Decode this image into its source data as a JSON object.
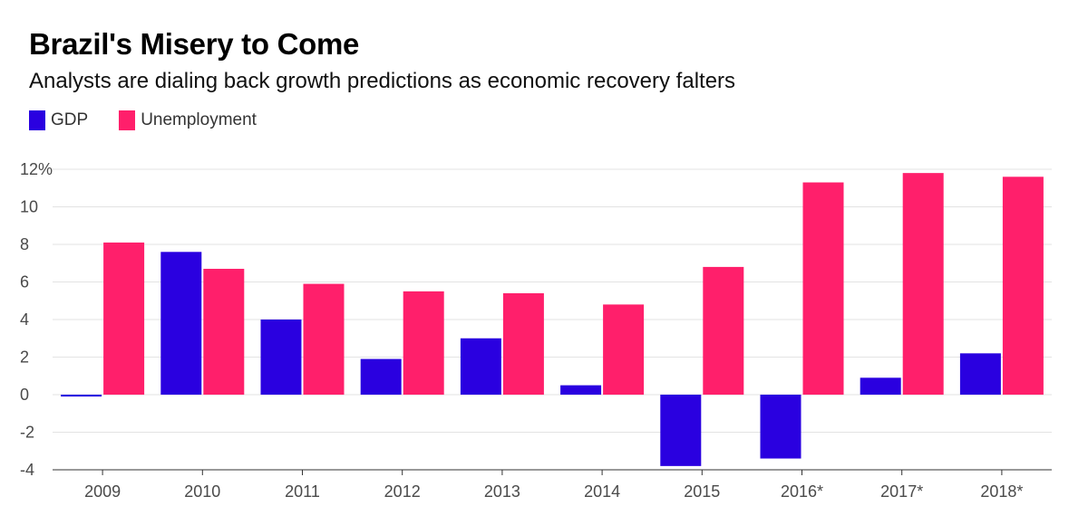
{
  "header": {
    "title": "Brazil's Misery to Come",
    "subtitle": "Analysts are dialing back growth predictions as economic recovery falters"
  },
  "legend": {
    "items": [
      {
        "label": "GDP",
        "color": "#2a00e0"
      },
      {
        "label": "Unemployment",
        "color": "#ff1f6b"
      }
    ]
  },
  "chart_data": {
    "type": "bar",
    "title": "Brazil's Misery to Come",
    "subtitle": "Analysts are dialing back growth predictions as economic recovery falters",
    "xlabel": "",
    "ylabel": "",
    "categories": [
      "2009",
      "2010",
      "2011",
      "2012",
      "2013",
      "2014",
      "2015",
      "2016*",
      "2017*",
      "2018*"
    ],
    "series": [
      {
        "name": "GDP",
        "color": "#2a00e0",
        "values": [
          -0.1,
          7.6,
          4.0,
          1.9,
          3.0,
          0.5,
          -3.8,
          -3.4,
          0.9,
          2.2
        ]
      },
      {
        "name": "Unemployment",
        "color": "#ff1f6b",
        "values": [
          8.1,
          6.7,
          5.9,
          5.5,
          5.4,
          4.8,
          6.8,
          11.3,
          11.8,
          11.6
        ]
      }
    ],
    "ylim": [
      -4,
      12
    ],
    "yticks": [
      -4,
      -2,
      0,
      2,
      4,
      6,
      8,
      10,
      12
    ],
    "ytick_labels": [
      "-4",
      "-2",
      "0",
      "2",
      "4",
      "6",
      "8",
      "10",
      "12%"
    ],
    "grid": true,
    "legend_position": "top-left"
  }
}
